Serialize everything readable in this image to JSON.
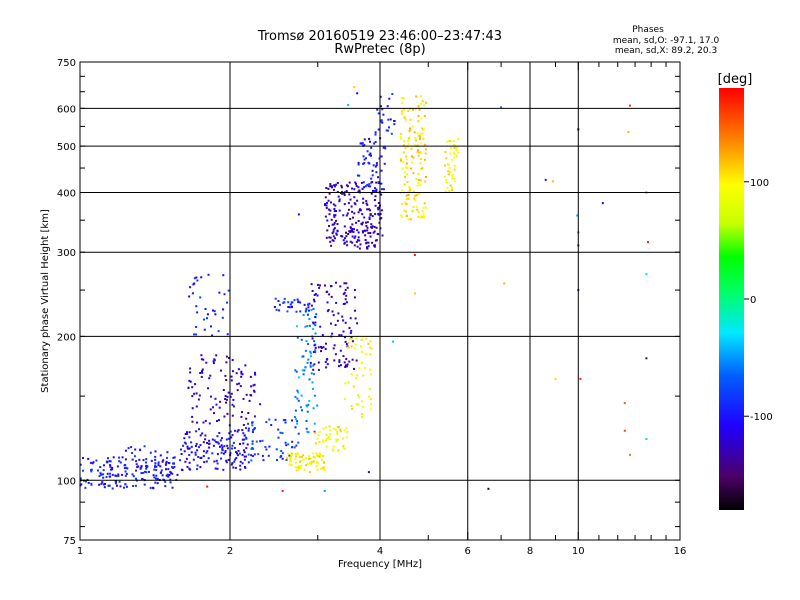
{
  "chart_data": {
    "type": "scatter",
    "title": "Tromsø 20160519 23:46:00–23:47:43",
    "subtitle": "RwPretec (8p)",
    "xlabel": "Frequency [MHz]",
    "ylabel": "Stationary phase Virtual Height [km]",
    "x_scale": "log",
    "y_scale": "log",
    "xlim": [
      1,
      16
    ],
    "ylim": [
      75,
      750
    ],
    "x_ticks": [
      "1",
      "2",
      "4",
      "6",
      "8",
      "10",
      "16"
    ],
    "y_ticks": [
      "75",
      "100",
      "200",
      "300",
      "400",
      "500",
      "600",
      "750"
    ],
    "grid": true,
    "legend": {
      "heading": "Phases",
      "line1": "mean, sd,O: -97.1, 17.0",
      "line2": "mean, sd,X:  89.2, 20.3"
    },
    "colorbar": {
      "label": "[deg]",
      "range": [
        -180,
        180
      ],
      "ticks": [
        "100",
        "0",
        "-100"
      ],
      "tick_values": [
        100,
        0,
        -100
      ]
    },
    "clusters": [
      {
        "x": [
          1.0,
          1.55
        ],
        "y": [
          96,
          112
        ],
        "phase": -95,
        "n": 160
      },
      {
        "x": [
          1.15,
          1.6
        ],
        "y": [
          100,
          118
        ],
        "phase": -100,
        "n": 45
      },
      {
        "x": [
          1.6,
          2.2
        ],
        "y": [
          105,
          128
        ],
        "phase": -105,
        "n": 140
      },
      {
        "x": [
          1.65,
          2.05
        ],
        "y": [
          130,
          185
        ],
        "phase": -120,
        "n": 70
      },
      {
        "x": [
          1.65,
          2.0
        ],
        "y": [
          200,
          270
        ],
        "phase": -95,
        "n": 35
      },
      {
        "x": [
          2.0,
          2.3
        ],
        "y": [
          112,
          175
        ],
        "phase": -125,
        "n": 45
      },
      {
        "x": [
          2.15,
          2.75
        ],
        "y": [
          110,
          135
        ],
        "phase": -80,
        "n": 60
      },
      {
        "x": [
          2.45,
          2.9
        ],
        "y": [
          225,
          240
        ],
        "phase": -90,
        "n": 35
      },
      {
        "x": [
          2.7,
          3.0
        ],
        "y": [
          125,
          230
        ],
        "phase": -55,
        "n": 75
      },
      {
        "x": [
          2.9,
          3.6
        ],
        "y": [
          170,
          260
        ],
        "phase": -125,
        "n": 110
      },
      {
        "x": [
          2.6,
          3.1
        ],
        "y": [
          104,
          114
        ],
        "phase": 100,
        "n": 75
      },
      {
        "x": [
          2.95,
          3.45
        ],
        "y": [
          115,
          130
        ],
        "phase": 95,
        "n": 45
      },
      {
        "x": [
          3.4,
          3.85
        ],
        "y": [
          135,
          200
        ],
        "phase": 95,
        "n": 50
      },
      {
        "x": [
          3.1,
          4.05
        ],
        "y": [
          305,
          420
        ],
        "phase": -125,
        "n": 230
      },
      {
        "x": [
          3.6,
          4.1
        ],
        "y": [
          400,
          520
        ],
        "phase": -100,
        "n": 60
      },
      {
        "x": [
          3.9,
          4.3
        ],
        "y": [
          520,
          650
        ],
        "phase": -95,
        "n": 25
      },
      {
        "x": [
          4.4,
          4.95
        ],
        "y": [
          350,
          640
        ],
        "phase": 105,
        "n": 150
      },
      {
        "x": [
          5.4,
          5.75
        ],
        "y": [
          400,
          520
        ],
        "phase": 100,
        "n": 45
      }
    ],
    "sparse_points": [
      {
        "x": 10.0,
        "y": 542,
        "phase": -175
      },
      {
        "x": 10.0,
        "y": 330,
        "phase": -60
      },
      {
        "x": 10.0,
        "y": 310,
        "phase": -90
      },
      {
        "x": 10.0,
        "y": 250,
        "phase": -95
      },
      {
        "x": 9.95,
        "y": 358,
        "phase": -40
      },
      {
        "x": 12.7,
        "y": 608,
        "phase": 160
      },
      {
        "x": 12.6,
        "y": 535,
        "phase": 120
      },
      {
        "x": 11.2,
        "y": 380,
        "phase": -120
      },
      {
        "x": 13.7,
        "y": 400,
        "phase": -50
      },
      {
        "x": 13.8,
        "y": 315,
        "phase": 170
      },
      {
        "x": 13.7,
        "y": 270,
        "phase": -30
      },
      {
        "x": 13.7,
        "y": 180,
        "phase": -140
      },
      {
        "x": 13.7,
        "y": 122,
        "phase": -35
      },
      {
        "x": 12.4,
        "y": 145,
        "phase": 150
      },
      {
        "x": 12.4,
        "y": 127,
        "phase": 160
      },
      {
        "x": 12.7,
        "y": 113,
        "phase": 140
      },
      {
        "x": 10.1,
        "y": 163,
        "phase": 165
      },
      {
        "x": 9.0,
        "y": 163,
        "phase": 110
      },
      {
        "x": 8.6,
        "y": 425,
        "phase": -100
      },
      {
        "x": 8.9,
        "y": 422,
        "phase": 120
      },
      {
        "x": 7.1,
        "y": 258,
        "phase": 120
      },
      {
        "x": 7.0,
        "y": 603,
        "phase": -60
      },
      {
        "x": 6.6,
        "y": 96,
        "phase": -170
      },
      {
        "x": 4.25,
        "y": 195,
        "phase": -40
      },
      {
        "x": 4.7,
        "y": 296,
        "phase": 170
      },
      {
        "x": 4.7,
        "y": 246,
        "phase": 115
      },
      {
        "x": 3.8,
        "y": 104,
        "phase": -130
      },
      {
        "x": 3.55,
        "y": 665,
        "phase": 110
      },
      {
        "x": 3.6,
        "y": 645,
        "phase": -120
      },
      {
        "x": 3.45,
        "y": 610,
        "phase": -40
      },
      {
        "x": 2.55,
        "y": 95,
        "phase": 170
      },
      {
        "x": 1.8,
        "y": 97,
        "phase": 170
      },
      {
        "x": 3.1,
        "y": 95,
        "phase": -50
      },
      {
        "x": 2.75,
        "y": 360,
        "phase": -110
      }
    ]
  }
}
